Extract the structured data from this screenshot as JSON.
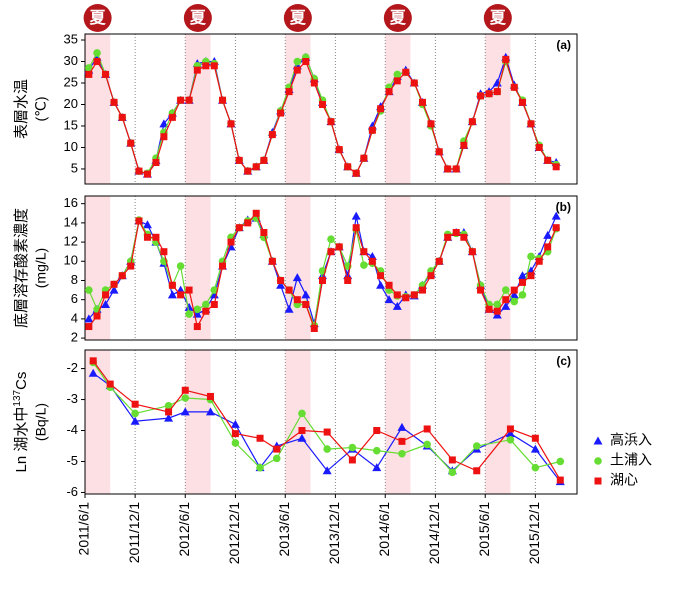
{
  "summer": {
    "label": "夏",
    "periods": [
      [
        "2011/6/1",
        "2011/9/1"
      ],
      [
        "2012/6/1",
        "2012/9/1"
      ],
      [
        "2013/6/1",
        "2013/9/1"
      ],
      [
        "2014/6/1",
        "2014/9/1"
      ],
      [
        "2015/6/1",
        "2015/9/1"
      ]
    ]
  },
  "x_axis": {
    "xlim": [
      "2011/6/1",
      "2016/5/1"
    ],
    "xticks": [
      "2011/6/1",
      "2011/12/1",
      "2012/6/1",
      "2012/12/1",
      "2013/6/1",
      "2013/12/1",
      "2014/6/1",
      "2014/12/1",
      "2015/6/1",
      "2015/12/1"
    ],
    "grid": true
  },
  "legend": [
    {
      "name": "高浜入",
      "color": "#1a1aff",
      "marker": "triangle"
    },
    {
      "name": "土浦入",
      "color": "#66dd33",
      "marker": "circle"
    },
    {
      "name": "湖心",
      "color": "#ee1111",
      "marker": "square"
    }
  ],
  "chart_data": [
    {
      "type": "line",
      "panel_label": "(a)",
      "ylabel": [
        "表層水温"
      ],
      "yunit": "(℃)",
      "ylim": [
        1.5,
        36.4
      ],
      "yticks": [
        5,
        10,
        15,
        20,
        25,
        30,
        35
      ],
      "x": [
        "2011/6/15",
        "2011/7/15",
        "2011/8/15",
        "2011/9/15",
        "2011/10/15",
        "2011/11/15",
        "2011/12/15",
        "2012/1/15",
        "2012/2/15",
        "2012/3/15",
        "2012/4/15",
        "2012/5/15",
        "2012/6/15",
        "2012/7/15",
        "2012/8/15",
        "2012/9/15",
        "2012/10/15",
        "2012/11/15",
        "2012/12/15",
        "2013/1/15",
        "2013/2/15",
        "2013/3/15",
        "2013/4/15",
        "2013/5/15",
        "2013/6/15",
        "2013/7/15",
        "2013/8/15",
        "2013/9/15",
        "2013/10/15",
        "2013/11/15",
        "2013/12/15",
        "2014/1/15",
        "2014/2/15",
        "2014/3/15",
        "2014/4/15",
        "2014/5/15",
        "2014/6/15",
        "2014/7/15",
        "2014/8/15",
        "2014/9/15",
        "2014/10/15",
        "2014/11/15",
        "2014/12/15",
        "2015/1/15",
        "2015/2/15",
        "2015/3/15",
        "2015/4/15",
        "2015/5/15",
        "2015/6/15",
        "2015/7/15",
        "2015/8/15",
        "2015/9/15",
        "2015/10/15",
        "2015/11/15",
        "2015/12/15",
        "2016/1/15",
        "2016/2/15"
      ],
      "series": [
        {
          "values": [
            28,
            31,
            27,
            20.5,
            17,
            11,
            4.5,
            3.8,
            7,
            15.5,
            18,
            21,
            21,
            29.5,
            30,
            30,
            21,
            15.5,
            7,
            4.5,
            5.5,
            7,
            13.5,
            18.5,
            23.5,
            29,
            31,
            26,
            20.5,
            16,
            9.5,
            5.5,
            4,
            7.5,
            15,
            19.5,
            23,
            26.5,
            28,
            25,
            20.5,
            15.5,
            9,
            5,
            5,
            10.5,
            16,
            22.5,
            23,
            25,
            31,
            24.5,
            20.5,
            15.5,
            10,
            7,
            6.5
          ]
        },
        {
          "values": [
            28.5,
            32,
            27,
            20.5,
            17,
            11,
            4.5,
            4,
            7.5,
            13.5,
            18,
            21,
            21,
            29,
            30,
            29.5,
            21,
            15.5,
            7,
            4.5,
            5.5,
            7,
            13,
            18.5,
            24,
            30,
            31,
            26,
            21,
            16,
            9.5,
            5.5,
            4,
            7.5,
            14,
            18.5,
            24,
            27,
            27.5,
            25,
            20,
            15,
            9,
            5,
            5,
            11.5,
            16,
            22,
            22.5,
            23,
            30,
            24,
            21,
            15.5,
            10.5,
            7,
            6
          ]
        },
        {
          "values": [
            27,
            30,
            27,
            20.5,
            17,
            11,
            4.5,
            3.8,
            6.5,
            12.5,
            17,
            21,
            21,
            28,
            29,
            29,
            21,
            15.5,
            7,
            4.5,
            5.5,
            7,
            13,
            18,
            23,
            28,
            30,
            25,
            20,
            16,
            9.5,
            5.5,
            4,
            7.5,
            14,
            19,
            23,
            25.5,
            27.5,
            25,
            20.5,
            15.5,
            9,
            5,
            5,
            10.5,
            16,
            22,
            22.5,
            23,
            30.5,
            24,
            20.5,
            15.5,
            10,
            7,
            5.5
          ]
        }
      ]
    },
    {
      "type": "line",
      "panel_label": "(b)",
      "ylabel": [
        "底層溶存酸素濃度"
      ],
      "yunit": "(mg/L)",
      "ylim": [
        1.8,
        16.8
      ],
      "yticks": [
        2,
        4,
        6,
        8,
        10,
        12,
        14,
        16
      ],
      "x": [
        "2011/6/15",
        "2011/7/15",
        "2011/8/15",
        "2011/9/15",
        "2011/10/15",
        "2011/11/15",
        "2011/12/15",
        "2012/1/15",
        "2012/2/15",
        "2012/3/15",
        "2012/4/15",
        "2012/5/15",
        "2012/6/15",
        "2012/7/15",
        "2012/8/15",
        "2012/9/15",
        "2012/10/15",
        "2012/11/15",
        "2012/12/15",
        "2013/1/15",
        "2013/2/15",
        "2013/3/15",
        "2013/4/15",
        "2013/5/15",
        "2013/6/15",
        "2013/7/15",
        "2013/8/15",
        "2013/9/15",
        "2013/10/15",
        "2013/11/15",
        "2013/12/15",
        "2014/1/15",
        "2014/2/15",
        "2014/3/15",
        "2014/4/15",
        "2014/5/15",
        "2014/6/15",
        "2014/7/15",
        "2014/8/15",
        "2014/9/15",
        "2014/10/15",
        "2014/11/15",
        "2014/12/15",
        "2015/1/15",
        "2015/2/15",
        "2015/3/15",
        "2015/4/15",
        "2015/5/15",
        "2015/6/15",
        "2015/7/15",
        "2015/8/15",
        "2015/9/15",
        "2015/10/15",
        "2015/11/15",
        "2015/12/15",
        "2016/1/15",
        "2016/2/15"
      ],
      "series": [
        {
          "values": [
            4,
            5,
            5.5,
            7,
            8.5,
            10,
            14.2,
            13.8,
            12,
            9.8,
            6.5,
            7,
            5.2,
            4.5,
            5,
            6.5,
            9.5,
            11.5,
            13.5,
            14.3,
            14.5,
            12.8,
            10,
            7.5,
            5,
            8.3,
            6.5,
            3.5,
            8.5,
            11,
            11.5,
            8.5,
            14.7,
            11,
            10.5,
            7.5,
            6,
            5.3,
            6.5,
            6.4,
            7.5,
            8.7,
            10,
            12.5,
            13,
            13,
            11,
            7.5,
            5,
            4.4,
            5.3,
            6.5,
            8.5,
            9,
            10.5,
            12.7,
            14.7
          ]
        },
        {
          "values": [
            7,
            5,
            7,
            7.6,
            8.5,
            10,
            14.3,
            12.8,
            12,
            10,
            7.5,
            9.5,
            4.5,
            5,
            5.5,
            7,
            10,
            12.5,
            13.5,
            14.2,
            14.5,
            12.5,
            10,
            8,
            7,
            5.5,
            5.5,
            3.3,
            9,
            12.3,
            11.5,
            9.5,
            13.3,
            9.6,
            9.8,
            9,
            7,
            6.4,
            6.3,
            6.5,
            7.5,
            9,
            10,
            12.8,
            12.9,
            12.8,
            11,
            7.5,
            5.5,
            5.5,
            7,
            5.8,
            6.5,
            10.5,
            10.3,
            11,
            13.4
          ]
        },
        {
          "values": [
            3.2,
            4.3,
            6.5,
            7.6,
            8.5,
            9.5,
            14.2,
            12.5,
            12.5,
            11,
            7.5,
            6.5,
            7,
            3.2,
            4.8,
            5.5,
            9.5,
            12,
            13.5,
            14,
            15,
            13,
            10,
            8,
            7,
            6,
            5.5,
            3,
            8,
            11,
            11.5,
            8,
            13.5,
            11,
            10,
            8.5,
            7.5,
            6.5,
            6.2,
            6.5,
            7,
            8.5,
            10,
            12.5,
            13,
            12.5,
            11,
            7,
            5,
            4.8,
            6,
            7,
            7.8,
            8.5,
            10,
            11.5,
            13.5
          ]
        }
      ]
    },
    {
      "type": "line",
      "panel_label": "(c)",
      "ylabel": [
        "Ln 湖水中",
        "137",
        "Cs"
      ],
      "yunit": "(Bq/L)",
      "ylim": [
        -6.05,
        -1.4
      ],
      "yticks": [
        -6,
        -5,
        -4,
        -3,
        -2
      ],
      "x": [
        "2011/7/1",
        "2011/9/1",
        "2011/12/1",
        "2012/4/1",
        "2012/6/1",
        "2012/9/1",
        "2012/12/1",
        "2013/3/1",
        "2013/5/1",
        "2013/8/1",
        "2013/11/1",
        "2014/2/1",
        "2014/5/1",
        "2014/8/1",
        "2014/11/1",
        "2015/2/1",
        "2015/5/1",
        "2015/9/1",
        "2015/12/1",
        "2016/3/1"
      ],
      "series": [
        {
          "values": [
            -2.15,
            -2.55,
            -3.7,
            -3.6,
            -3.4,
            -3.4,
            -3.8,
            -5.2,
            -4.5,
            -4.25,
            -5.3,
            -4.6,
            -5.2,
            -3.9,
            -4.5,
            -5.3,
            -4.6,
            -4.1,
            -4.6,
            -5.65
          ]
        },
        {
          "values": [
            -1.8,
            -2.6,
            -3.45,
            -3.2,
            -2.95,
            -3.0,
            -4.4,
            -5.2,
            -4.9,
            -3.45,
            -4.6,
            -4.55,
            -4.65,
            -4.75,
            -4.45,
            -5.35,
            -4.5,
            -4.3,
            -5.2,
            -5.0
          ]
        },
        {
          "values": [
            -1.75,
            -2.5,
            -3.15,
            -3.4,
            -2.7,
            -2.9,
            -4.1,
            -4.25,
            -4.6,
            -4.0,
            -4.05,
            -4.95,
            -4.0,
            -4.35,
            -3.95,
            -4.95,
            -5.3,
            -3.95,
            -4.25,
            -5.6
          ]
        }
      ]
    }
  ]
}
